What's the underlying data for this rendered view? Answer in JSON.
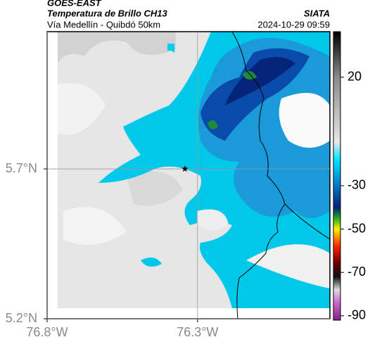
{
  "header": {
    "satellite": "GOES-EAST",
    "title": "Temperatura de Brillo CH13",
    "source": "SIATA",
    "subtitle": "Vía Medellín - Quibdó 50km",
    "date": "2024-10-29 09:59"
  },
  "map": {
    "xlim": [
      -76.8,
      -75.86
    ],
    "ylim": [
      5.2,
      6.158
    ],
    "xticks": [
      {
        "value": -76.8,
        "label": "76.8°W"
      },
      {
        "value": -76.3,
        "label": "76.3°W"
      }
    ],
    "yticks": [
      {
        "value": 5.2,
        "label": "5.2°N"
      },
      {
        "value": 5.7,
        "label": "5.7°N"
      }
    ],
    "marker": {
      "lon": -76.342,
      "lat": 5.7
    }
  },
  "colorbar": {
    "clim": [
      -92,
      41
    ],
    "ticks": [
      20,
      -30,
      -50,
      -70,
      -90
    ],
    "stops": [
      {
        "value": 41,
        "color": "#000000"
      },
      {
        "value": 20,
        "color": "#8a8a8a"
      },
      {
        "value": -10,
        "color": "#e8e8e8"
      },
      {
        "value": -18,
        "color": "#00e5ff"
      },
      {
        "value": -30,
        "color": "#0077cc"
      },
      {
        "value": -40,
        "color": "#002277"
      },
      {
        "value": -45,
        "color": "#22aa22"
      },
      {
        "value": -50,
        "color": "#ffee00"
      },
      {
        "value": -58,
        "color": "#ff2200"
      },
      {
        "value": -66,
        "color": "#660000"
      },
      {
        "value": -72,
        "color": "#111111"
      },
      {
        "value": -78,
        "color": "#dddddd"
      },
      {
        "value": -84,
        "color": "#cc66cc"
      },
      {
        "value": -92,
        "color": "#882288"
      }
    ]
  }
}
